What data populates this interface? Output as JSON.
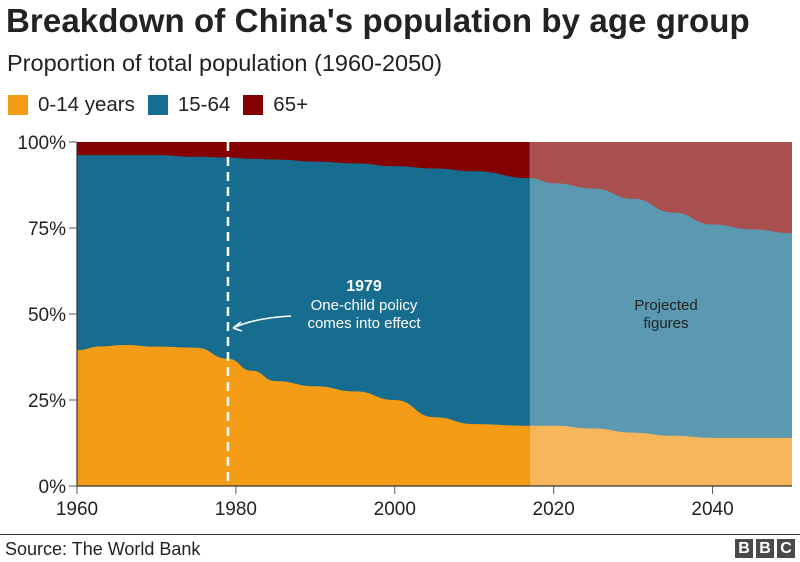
{
  "chart_data": {
    "type": "area",
    "stacked": true,
    "normalized": true,
    "title": "Breakdown of China's population by age group",
    "subtitle": "Proportion of total population (1960-2050)",
    "xlabel": "",
    "ylabel": "",
    "xlim": [
      1960,
      2050
    ],
    "ylim": [
      0,
      100
    ],
    "x_ticks": [
      1960,
      1980,
      2000,
      2020,
      2040
    ],
    "y_ticks": [
      0,
      25,
      50,
      75,
      100
    ],
    "y_tick_labels": [
      "0%",
      "25%",
      "50%",
      "75%",
      "100%"
    ],
    "grid": false,
    "legend_position": "top-left",
    "projection_start_year": 2017,
    "x": [
      1960,
      1963,
      1966,
      1970,
      1975,
      1979,
      1982,
      1985,
      1990,
      1995,
      2000,
      2005,
      2010,
      2017,
      2020,
      2025,
      2030,
      2035,
      2040,
      2045,
      2050
    ],
    "series": [
      {
        "name": "0-14 years",
        "color": "#f59c17",
        "projected_color": "#f8b65a",
        "values": [
          39.5,
          40.6,
          41.0,
          40.5,
          40.2,
          37.0,
          33.5,
          30.5,
          29.0,
          27.5,
          25.0,
          20.0,
          18.0,
          17.5,
          17.5,
          16.7,
          15.5,
          14.6,
          14.0,
          14.0,
          14.0
        ]
      },
      {
        "name": "15-64",
        "color": "#176d8f",
        "projected_color": "#5b99b1",
        "values": [
          56.7,
          55.6,
          55.2,
          55.7,
          55.5,
          58.5,
          61.6,
          64.4,
          65.3,
          66.3,
          68.0,
          72.3,
          73.5,
          72.0,
          70.5,
          69.8,
          68.0,
          64.9,
          62.0,
          60.6,
          59.5
        ]
      },
      {
        "name": "65+",
        "color": "#850000",
        "projected_color": "#a94f4f",
        "values": [
          3.8,
          3.8,
          3.8,
          3.8,
          4.3,
          4.5,
          4.9,
          5.1,
          5.7,
          6.2,
          7.0,
          7.7,
          8.5,
          10.5,
          12.0,
          13.5,
          16.5,
          20.5,
          24.0,
          25.4,
          26.5
        ]
      }
    ],
    "annotations": [
      {
        "year": 1979,
        "title": "1979",
        "lines": [
          "One-child policy",
          "comes into effect"
        ],
        "style": "dashed-vertical-line"
      },
      {
        "region": "projected",
        "lines": [
          "Projected",
          "figures"
        ]
      }
    ]
  },
  "legend": {
    "items": [
      {
        "label": "0-14 years",
        "color": "#f59c17"
      },
      {
        "label": "15-64",
        "color": "#176d8f"
      },
      {
        "label": "65+",
        "color": "#850000"
      }
    ]
  },
  "footer": {
    "source": "Source: The World Bank",
    "logo_letters": [
      "B",
      "B",
      "C"
    ]
  }
}
